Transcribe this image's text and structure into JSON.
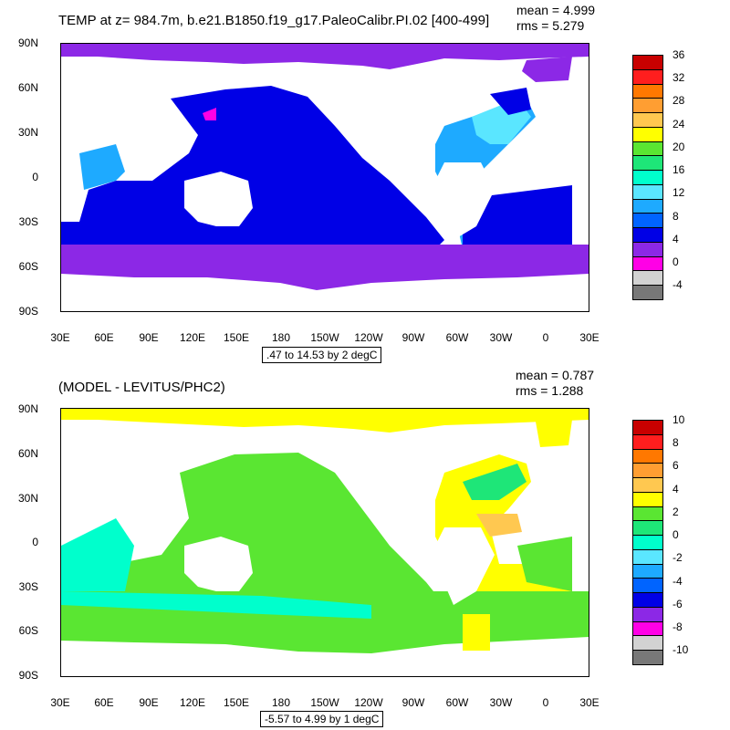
{
  "panel1": {
    "title": "TEMP at z= 984.7m, b.e21.B1850.f19_g17.PaleoCalibr.PI.02 [400-499]",
    "mean": "mean = 4.999",
    "rms": "rms = 5.279",
    "info": ".47 to 14.53 by 2 degC",
    "colorbar_labels": [
      "36",
      "32",
      "28",
      "24",
      "20",
      "16",
      "12",
      "8",
      "4",
      "0",
      "-4"
    ],
    "colorbar_colors": [
      "#c80000",
      "#ff1e1e",
      "#ff7800",
      "#ff9e32",
      "#ffc850",
      "#ffff00",
      "#5ae632",
      "#1ee678",
      "#00ffcc",
      "#5ae6ff",
      "#1eaaff",
      "#0064ff",
      "#0000e6",
      "#8c28e6",
      "#ff00e6",
      "#d2d2d2",
      "#787878"
    ]
  },
  "panel2": {
    "title": "(MODEL - LEVITUS/PHC2)",
    "mean": "mean = 0.787",
    "rms": "rms = 1.288",
    "info": "-5.57 to 4.99 by 1 degC",
    "colorbar_labels": [
      "10",
      "8",
      "6",
      "4",
      "2",
      "0",
      "-2",
      "-4",
      "-6",
      "-8",
      "-10"
    ],
    "colorbar_colors": [
      "#c80000",
      "#ff1e1e",
      "#ff7800",
      "#ff9e32",
      "#ffc850",
      "#ffff00",
      "#5ae632",
      "#1ee678",
      "#00ffcc",
      "#5ae6ff",
      "#1eaaff",
      "#0064ff",
      "#0000e6",
      "#8c28e6",
      "#ff00e6",
      "#d2d2d2",
      "#787878"
    ]
  },
  "axes": {
    "lat_labels": [
      "90N",
      "60N",
      "30N",
      "0",
      "30S",
      "60S",
      "90S"
    ],
    "lon_labels": [
      "30E",
      "60E",
      "90E",
      "120E",
      "150E",
      "180",
      "150W",
      "120W",
      "90W",
      "60W",
      "30W",
      "0",
      "30E"
    ]
  },
  "palette": {
    "deep_blue": "#0000e6",
    "violet": "#8c28e6",
    "light_blue": "#1eaaff",
    "cyan": "#5ae6ff",
    "green": "#5ae632",
    "bright_green": "#1ee678",
    "aqua": "#00ffcc",
    "yellow": "#ffff00",
    "orange": "#ffc850",
    "magenta": "#ff00e6"
  }
}
